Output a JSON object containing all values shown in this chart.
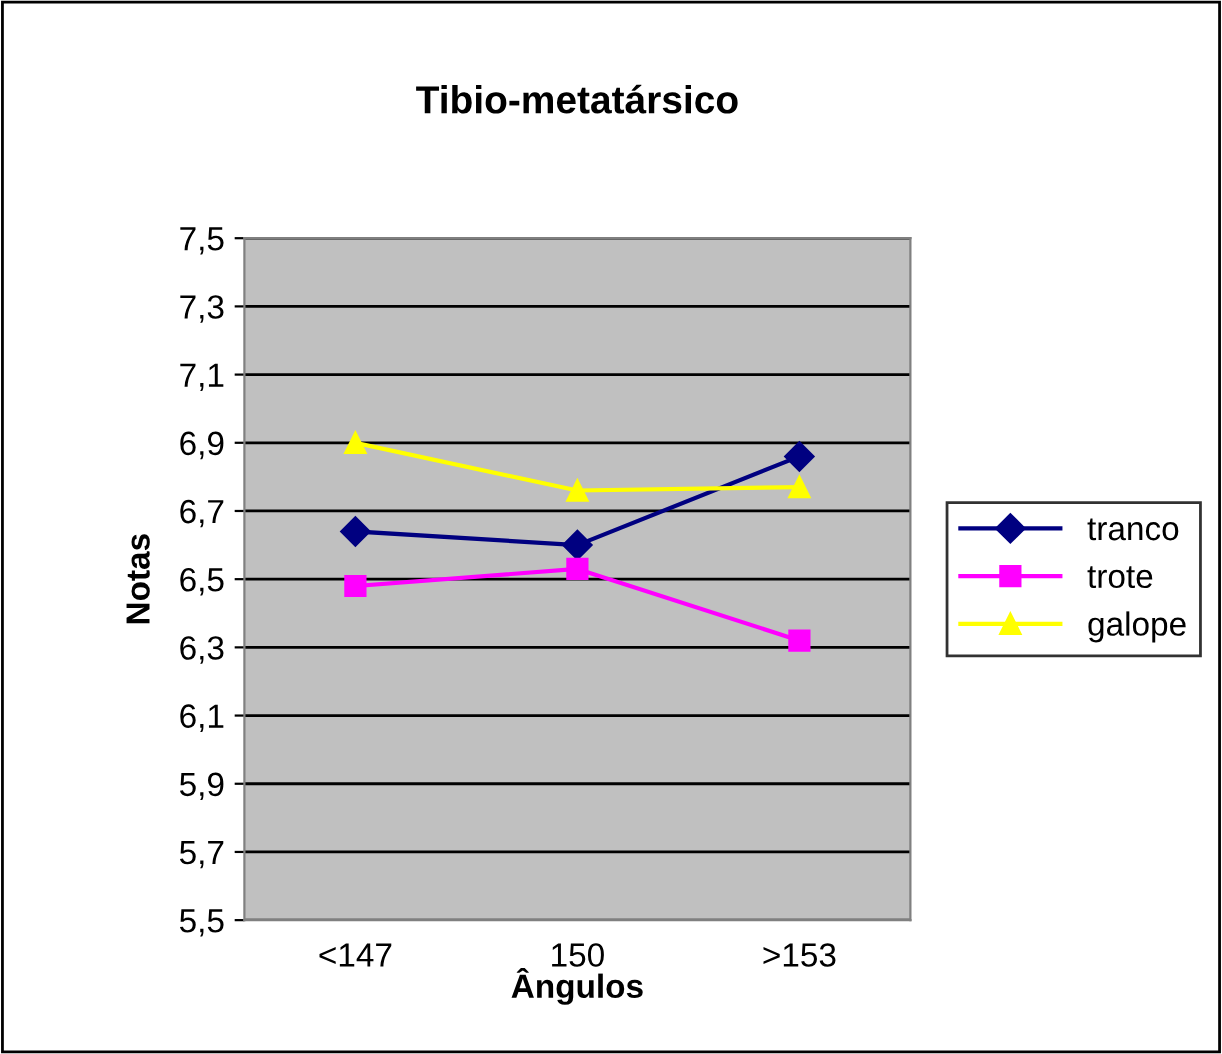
{
  "chart_data": {
    "type": "line",
    "title": "Tibio-metatársico",
    "xlabel": "Ângulos",
    "ylabel": "Notas",
    "categories": [
      "<147",
      "150",
      ">153"
    ],
    "series": [
      {
        "name": "tranco",
        "color": "#000080",
        "values": [
          6.64,
          6.6,
          6.86
        ],
        "marker": "diamond"
      },
      {
        "name": "trote",
        "color": "#ff00ff",
        "values": [
          6.48,
          6.53,
          6.32
        ],
        "marker": "square"
      },
      {
        "name": "galope",
        "color": "#ffff00",
        "values": [
          6.9,
          6.76,
          6.77
        ],
        "marker": "triangle"
      }
    ],
    "ylim": [
      5.5,
      7.5
    ],
    "yticks": [
      {
        "value": 5.5,
        "label": "5,5"
      },
      {
        "value": 5.7,
        "label": "5,7"
      },
      {
        "value": 5.9,
        "label": "5,9"
      },
      {
        "value": 6.1,
        "label": "6,1"
      },
      {
        "value": 6.3,
        "label": "6,3"
      },
      {
        "value": 6.5,
        "label": "6,5"
      },
      {
        "value": 6.7,
        "label": "6,7"
      },
      {
        "value": 6.9,
        "label": "6,9"
      },
      {
        "value": 7.1,
        "label": "7,1"
      },
      {
        "value": 7.3,
        "label": "7,3"
      },
      {
        "value": 7.5,
        "label": "7,5"
      }
    ],
    "grid": "y",
    "legend": "right",
    "line_style": "solid"
  }
}
